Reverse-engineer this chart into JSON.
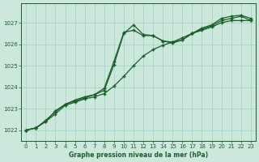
{
  "bg_color": "#cce8dc",
  "grid_color": "#a8d4c4",
  "line_color": "#1a5e2a",
  "xlabel": "Graphe pression niveau de la mer (hPa)",
  "xlabel_color": "#1a5e2a",
  "xlim": [
    -0.5,
    23.5
  ],
  "ylim": [
    1021.5,
    1027.9
  ],
  "yticks": [
    1022,
    1023,
    1024,
    1025,
    1026,
    1027
  ],
  "xticks": [
    0,
    1,
    2,
    3,
    4,
    5,
    6,
    7,
    8,
    9,
    10,
    11,
    12,
    13,
    14,
    15,
    16,
    17,
    18,
    19,
    20,
    21,
    22,
    23
  ],
  "series1_x": [
    0,
    1,
    2,
    3,
    4,
    5,
    6,
    7,
    8,
    9,
    10,
    11,
    12,
    13,
    14,
    15,
    16,
    17,
    18,
    19,
    20,
    21,
    22,
    23
  ],
  "series1_y": [
    1022.0,
    1022.1,
    1022.4,
    1022.75,
    1023.15,
    1023.3,
    1023.45,
    1023.55,
    1023.7,
    1024.05,
    1024.5,
    1025.0,
    1025.45,
    1025.75,
    1025.95,
    1026.1,
    1026.3,
    1026.5,
    1026.65,
    1026.8,
    1027.0,
    1027.1,
    1027.1,
    1027.1
  ],
  "series2_x": [
    0,
    1,
    2,
    3,
    4,
    5,
    6,
    7,
    8,
    9,
    10,
    11,
    12,
    13,
    14,
    15,
    16,
    17,
    18,
    19,
    20,
    21,
    22,
    23
  ],
  "series2_y": [
    1022.0,
    1022.1,
    1022.4,
    1022.9,
    1023.2,
    1023.4,
    1023.55,
    1023.65,
    1023.95,
    1025.2,
    1026.55,
    1026.65,
    1026.4,
    1026.4,
    1026.15,
    1026.1,
    1026.2,
    1026.5,
    1026.7,
    1026.85,
    1027.1,
    1027.2,
    1027.3,
    1027.1
  ],
  "series3_x": [
    0,
    1,
    2,
    3,
    4,
    5,
    6,
    7,
    8,
    9,
    10,
    11,
    12,
    13,
    14,
    15,
    16,
    17,
    18,
    19,
    20,
    21,
    22,
    23
  ],
  "series3_y": [
    1022.0,
    1022.1,
    1022.45,
    1022.85,
    1023.2,
    1023.35,
    1023.5,
    1023.65,
    1023.85,
    1025.05,
    1026.5,
    1026.9,
    1026.45,
    1026.4,
    1026.15,
    1026.05,
    1026.2,
    1026.5,
    1026.75,
    1026.9,
    1027.2,
    1027.3,
    1027.35,
    1027.2
  ]
}
